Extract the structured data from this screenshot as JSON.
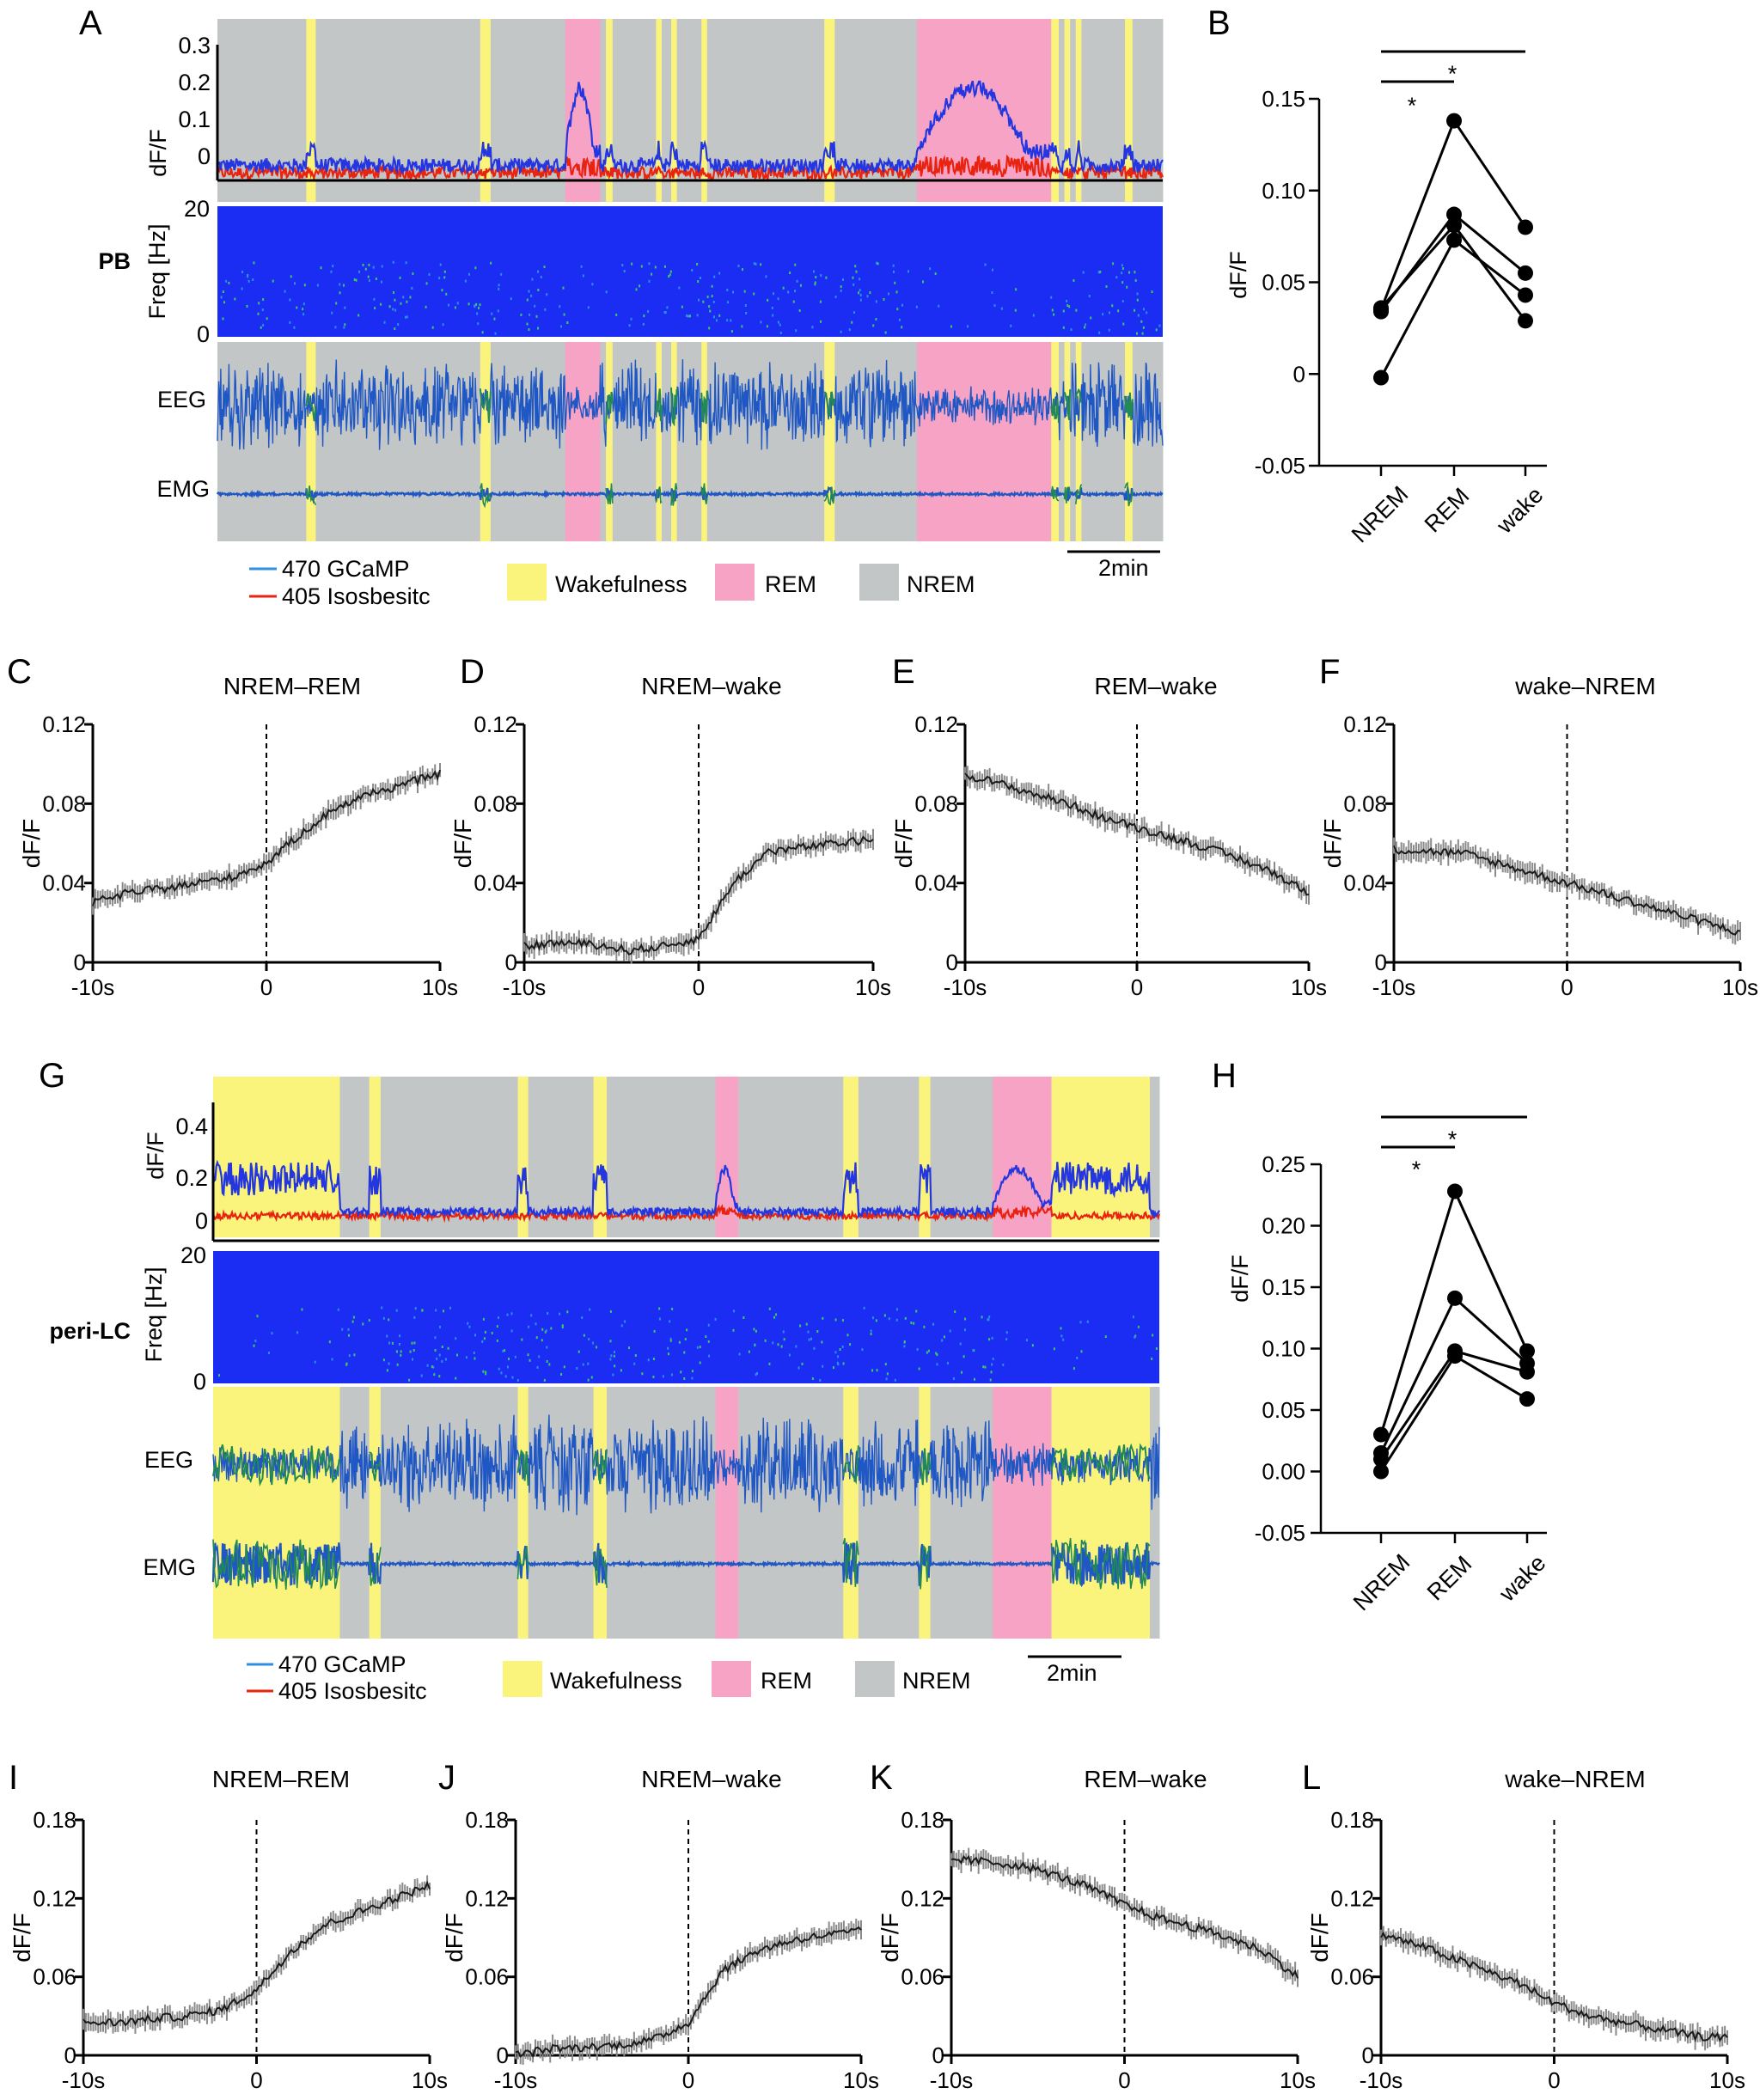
{
  "panels": {
    "A": {
      "letter": "A"
    },
    "B": {
      "letter": "B"
    },
    "C": {
      "letter": "C"
    },
    "D": {
      "letter": "D"
    },
    "E": {
      "letter": "E"
    },
    "F": {
      "letter": "F"
    },
    "G": {
      "letter": "G"
    },
    "H": {
      "letter": "H"
    },
    "I": {
      "letter": "I"
    },
    "J": {
      "letter": "J"
    },
    "K": {
      "letter": "K"
    },
    "L": {
      "letter": "L"
    }
  },
  "colors": {
    "wake": "#fbf47c",
    "rem": "#f7a3c5",
    "nrem": "#c3c6c6",
    "gcamp": "#2436e0",
    "isos": "#e8230f",
    "spec_bg": "#1b2df2",
    "eeg_blue": "#1f57c4",
    "eeg_green": "#228a52",
    "trace": "#1a1a1a",
    "err": "#8a8a8a"
  },
  "trace_panels": [
    {
      "id": "A",
      "region_label": "PB",
      "dff_label": "dF/F",
      "dff_ticks": [
        "0.3",
        "0.2",
        "0.1",
        "0"
      ],
      "freq_label": "Freq [Hz]",
      "freq_ticks": [
        "20",
        "0"
      ],
      "eeg_label": "EEG",
      "emg_label": "EMG",
      "scale_bar": "2min",
      "legend": {
        "gcamp": "470 GCaMP",
        "isos": "405 Isosbesitc",
        "wake": "Wakefulness",
        "rem": "REM",
        "nrem": "NREM"
      },
      "hypnogram": [
        {
          "state": "nrem",
          "start": 0,
          "end": 0.094
        },
        {
          "state": "wake",
          "start": 0.094,
          "end": 0.104
        },
        {
          "state": "nrem",
          "start": 0.104,
          "end": 0.278
        },
        {
          "state": "wake",
          "start": 0.278,
          "end": 0.289
        },
        {
          "state": "nrem",
          "start": 0.289,
          "end": 0.368
        },
        {
          "state": "rem",
          "start": 0.368,
          "end": 0.405
        },
        {
          "state": "nrem",
          "start": 0.405,
          "end": 0.411
        },
        {
          "state": "wake",
          "start": 0.411,
          "end": 0.418
        },
        {
          "state": "nrem",
          "start": 0.418,
          "end": 0.464
        },
        {
          "state": "wake",
          "start": 0.464,
          "end": 0.47
        },
        {
          "state": "nrem",
          "start": 0.47,
          "end": 0.48
        },
        {
          "state": "wake",
          "start": 0.48,
          "end": 0.486
        },
        {
          "state": "nrem",
          "start": 0.486,
          "end": 0.512
        },
        {
          "state": "wake",
          "start": 0.512,
          "end": 0.518
        },
        {
          "state": "nrem",
          "start": 0.518,
          "end": 0.642
        },
        {
          "state": "wake",
          "start": 0.642,
          "end": 0.653
        },
        {
          "state": "nrem",
          "start": 0.653,
          "end": 0.74
        },
        {
          "state": "rem",
          "start": 0.74,
          "end": 0.882
        },
        {
          "state": "wake",
          "start": 0.882,
          "end": 0.89
        },
        {
          "state": "nrem",
          "start": 0.89,
          "end": 0.896
        },
        {
          "state": "wake",
          "start": 0.896,
          "end": 0.902
        },
        {
          "state": "nrem",
          "start": 0.902,
          "end": 0.908
        },
        {
          "state": "wake",
          "start": 0.908,
          "end": 0.914
        },
        {
          "state": "nrem",
          "start": 0.914,
          "end": 0.96
        },
        {
          "state": "wake",
          "start": 0.96,
          "end": 0.968
        },
        {
          "state": "nrem",
          "start": 0.968,
          "end": 1
        }
      ]
    },
    {
      "id": "G",
      "region_label": "peri-LC",
      "dff_label": "dF/F",
      "dff_ticks": [
        "0.4",
        "0.2",
        "0"
      ],
      "freq_label": "Freq [Hz]",
      "freq_ticks": [
        "20",
        "0"
      ],
      "eeg_label": "EEG",
      "emg_label": "EMG",
      "scale_bar": "2min",
      "legend": {
        "gcamp": "470 GCaMP",
        "isos": "405 Isosbesitc",
        "wake": "Wakefulness",
        "rem": "REM",
        "nrem": "NREM"
      },
      "hypnogram": [
        {
          "state": "wake",
          "start": 0,
          "end": 0.134
        },
        {
          "state": "nrem",
          "start": 0.134,
          "end": 0.165
        },
        {
          "state": "wake",
          "start": 0.165,
          "end": 0.177
        },
        {
          "state": "nrem",
          "start": 0.177,
          "end": 0.322
        },
        {
          "state": "wake",
          "start": 0.322,
          "end": 0.333
        },
        {
          "state": "nrem",
          "start": 0.333,
          "end": 0.402
        },
        {
          "state": "wake",
          "start": 0.402,
          "end": 0.416
        },
        {
          "state": "nrem",
          "start": 0.416,
          "end": 0.531
        },
        {
          "state": "rem",
          "start": 0.531,
          "end": 0.555
        },
        {
          "state": "nrem",
          "start": 0.555,
          "end": 0.666
        },
        {
          "state": "wake",
          "start": 0.666,
          "end": 0.682
        },
        {
          "state": "nrem",
          "start": 0.682,
          "end": 0.746
        },
        {
          "state": "wake",
          "start": 0.746,
          "end": 0.758
        },
        {
          "state": "nrem",
          "start": 0.758,
          "end": 0.824
        },
        {
          "state": "rem",
          "start": 0.824,
          "end": 0.886
        },
        {
          "state": "wake",
          "start": 0.886,
          "end": 0.99
        },
        {
          "state": "nrem",
          "start": 0.99,
          "end": 1
        }
      ]
    }
  ],
  "chart_data": [
    {
      "panel": "B",
      "type": "scatter",
      "categories": [
        "NREM",
        "REM",
        "wake"
      ],
      "ylabel": "dF/F",
      "ylim": [
        -0.05,
        0.15
      ],
      "yticks": [
        -0.05,
        0,
        0.05,
        0.1,
        0.15
      ],
      "ytick_labels": [
        "-0.05",
        "0",
        "0.05",
        "0.10",
        "0.15"
      ],
      "significance": [
        "*",
        "*"
      ],
      "series": [
        {
          "values": [
            0.035,
            0.138,
            0.08
          ]
        },
        {
          "values": [
            0.034,
            0.087,
            0.055
          ]
        },
        {
          "values": [
            0.036,
            0.081,
            0.029
          ]
        },
        {
          "values": [
            -0.002,
            0.073,
            0.043
          ]
        }
      ]
    },
    {
      "panel": "C",
      "type": "line",
      "title": "NREM–REM",
      "ylabel": "dF/F",
      "ylim": [
        0,
        0.12
      ],
      "xlim": [
        -10,
        10
      ],
      "yticks": [
        "0",
        "0.04",
        "0.08",
        "0.12"
      ],
      "xticks": [
        "-10s",
        "0",
        "10s"
      ],
      "x": [
        -10,
        -8,
        -6,
        -4,
        -2,
        0,
        2,
        4,
        6,
        8,
        10
      ],
      "y": [
        0.03,
        0.035,
        0.037,
        0.04,
        0.043,
        0.05,
        0.065,
        0.078,
        0.085,
        0.09,
        0.095
      ]
    },
    {
      "panel": "D",
      "type": "line",
      "title": "NREM–wake",
      "ylabel": "dF/F",
      "ylim": [
        0,
        0.12
      ],
      "xlim": [
        -10,
        10
      ],
      "yticks": [
        "0",
        "0.04",
        "0.08",
        "0.12"
      ],
      "xticks": [
        "-10s",
        "0",
        "10s"
      ],
      "x": [
        -10,
        -8,
        -6,
        -4,
        -2,
        0,
        2,
        4,
        6,
        8,
        10
      ],
      "y": [
        0.008,
        0.01,
        0.009,
        0.006,
        0.008,
        0.012,
        0.04,
        0.056,
        0.058,
        0.06,
        0.062
      ]
    },
    {
      "panel": "E",
      "type": "line",
      "title": "REM–wake",
      "ylabel": "dF/F",
      "ylim": [
        0,
        0.12
      ],
      "xlim": [
        -10,
        10
      ],
      "yticks": [
        "0",
        "0.04",
        "0.08",
        "0.12"
      ],
      "xticks": [
        "-10s",
        "0",
        "10s"
      ],
      "x": [
        -10,
        -8,
        -6,
        -4,
        -2,
        0,
        2,
        4,
        6,
        8,
        10
      ],
      "y": [
        0.095,
        0.09,
        0.085,
        0.08,
        0.073,
        0.068,
        0.063,
        0.058,
        0.052,
        0.045,
        0.035
      ]
    },
    {
      "panel": "F",
      "type": "line",
      "title": "wake–NREM",
      "ylabel": "dF/F",
      "ylim": [
        0,
        0.12
      ],
      "xlim": [
        -10,
        10
      ],
      "yticks": [
        "0",
        "0.04",
        "0.08",
        "0.12"
      ],
      "xticks": [
        "-10s",
        "0",
        "10s"
      ],
      "x": [
        -10,
        -8,
        -6,
        -4,
        -2,
        0,
        2,
        4,
        6,
        8,
        10
      ],
      "y": [
        0.057,
        0.056,
        0.055,
        0.05,
        0.045,
        0.04,
        0.035,
        0.03,
        0.025,
        0.02,
        0.015
      ]
    },
    {
      "panel": "H",
      "type": "scatter",
      "categories": [
        "NREM",
        "REM",
        "wake"
      ],
      "ylabel": "dF/F",
      "ylim": [
        -0.05,
        0.25
      ],
      "yticks": [
        -0.05,
        0,
        0.05,
        0.1,
        0.15,
        0.2,
        0.25
      ],
      "ytick_labels": [
        "-0.05",
        "0.00",
        "0.05",
        "0.10",
        "0.15",
        "0.20",
        "0.25"
      ],
      "significance": [
        "*",
        "*"
      ],
      "series": [
        {
          "values": [
            0.03,
            0.228,
            0.098
          ]
        },
        {
          "values": [
            0.015,
            0.141,
            0.088
          ]
        },
        {
          "values": [
            0.01,
            0.098,
            0.081
          ]
        },
        {
          "values": [
            0.0,
            0.094,
            0.059
          ]
        }
      ]
    },
    {
      "panel": "I",
      "type": "line",
      "title": "NREM–REM",
      "ylabel": "dF/F",
      "ylim": [
        0,
        0.18
      ],
      "xlim": [
        -10,
        10
      ],
      "yticks": [
        "0",
        "0.06",
        "0.12",
        "0.18"
      ],
      "xticks": [
        "-10s",
        "0",
        "10s"
      ],
      "x": [
        -10,
        -8,
        -6,
        -4,
        -2,
        0,
        2,
        4,
        6,
        8,
        10
      ],
      "y": [
        0.025,
        0.025,
        0.028,
        0.03,
        0.035,
        0.05,
        0.08,
        0.1,
        0.11,
        0.12,
        0.13
      ]
    },
    {
      "panel": "J",
      "type": "line",
      "title": "NREM–wake",
      "ylabel": "dF/F",
      "ylim": [
        0,
        0.18
      ],
      "xlim": [
        -10,
        10
      ],
      "yticks": [
        "0",
        "0.06",
        "0.12",
        "0.18"
      ],
      "xticks": [
        "-10s",
        "0",
        "10s"
      ],
      "x": [
        -10,
        -8,
        -6,
        -4,
        -2,
        0,
        2,
        4,
        6,
        8,
        10
      ],
      "y": [
        0.0,
        0.005,
        0.006,
        0.008,
        0.012,
        0.025,
        0.065,
        0.08,
        0.088,
        0.092,
        0.095
      ]
    },
    {
      "panel": "K",
      "type": "line",
      "title": "REM–wake",
      "ylabel": "dF/F",
      "ylim": [
        0,
        0.18
      ],
      "xlim": [
        -10,
        10
      ],
      "yticks": [
        "0",
        "0.06",
        "0.12",
        "0.18"
      ],
      "xticks": [
        "-10s",
        "0",
        "10s"
      ],
      "x": [
        -10,
        -8,
        -6,
        -4,
        -2,
        0,
        2,
        4,
        6,
        8,
        10
      ],
      "y": [
        0.15,
        0.148,
        0.145,
        0.138,
        0.128,
        0.115,
        0.105,
        0.098,
        0.09,
        0.08,
        0.06
      ]
    },
    {
      "panel": "L",
      "type": "line",
      "title": "wake–NREM",
      "ylabel": "dF/F",
      "ylim": [
        0,
        0.18
      ],
      "xlim": [
        -10,
        10
      ],
      "yticks": [
        "0",
        "0.06",
        "0.12",
        "0.18"
      ],
      "xticks": [
        "-10s",
        "0",
        "10s"
      ],
      "x": [
        -10,
        -8,
        -6,
        -4,
        -2,
        0,
        2,
        4,
        6,
        8,
        10
      ],
      "y": [
        0.092,
        0.085,
        0.075,
        0.065,
        0.055,
        0.04,
        0.03,
        0.025,
        0.02,
        0.015,
        0.013
      ]
    }
  ]
}
